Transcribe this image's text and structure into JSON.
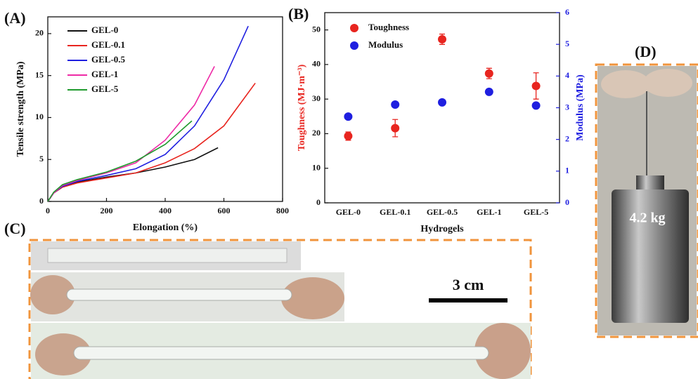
{
  "panel_labels": [
    "(A)",
    "(B)",
    "(C)",
    "(D)"
  ],
  "photo_c": {
    "scale_label": "3 cm"
  },
  "photo_d": {
    "weight_label": "4.2 kg"
  },
  "chart_data": [
    {
      "type": "line",
      "xlabel": "Elongation (%)",
      "ylabel": "Tensile strength (MPa)",
      "xlim": [
        0,
        800
      ],
      "xticks": [
        0,
        200,
        400,
        600,
        800
      ],
      "ylim": [
        0,
        22
      ],
      "yticks": [
        0,
        5,
        10,
        15,
        20
      ],
      "legend": "upper left",
      "series": [
        {
          "name": "GEL-0",
          "color": "#111111",
          "x": [
            0,
            20,
            50,
            100,
            200,
            300,
            400,
            500,
            580
          ],
          "values": [
            0,
            1.0,
            1.8,
            2.3,
            2.9,
            3.4,
            4.1,
            5.0,
            6.4
          ]
        },
        {
          "name": "GEL-0.1",
          "color": "#e8251f",
          "x": [
            0,
            20,
            50,
            100,
            200,
            300,
            400,
            500,
            600,
            707
          ],
          "values": [
            0,
            1.0,
            1.7,
            2.2,
            2.8,
            3.4,
            4.6,
            6.3,
            9.0,
            14.1
          ]
        },
        {
          "name": "GEL-0.5",
          "color": "#1f1fe0",
          "x": [
            0,
            20,
            50,
            100,
            200,
            300,
            400,
            500,
            600,
            683
          ],
          "values": [
            0,
            1.0,
            1.8,
            2.4,
            3.1,
            3.9,
            5.6,
            9.0,
            14.5,
            20.9
          ]
        },
        {
          "name": "GEL-1",
          "color": "#ee2aa6",
          "x": [
            0,
            20,
            50,
            100,
            200,
            300,
            400,
            500,
            568
          ],
          "values": [
            0,
            1.0,
            1.9,
            2.5,
            3.4,
            4.6,
            7.3,
            11.5,
            16.1
          ]
        },
        {
          "name": "GEL-5",
          "color": "#1f9a2e",
          "x": [
            0,
            20,
            50,
            100,
            200,
            300,
            400,
            491
          ],
          "values": [
            0,
            1.1,
            2.0,
            2.6,
            3.5,
            4.8,
            6.8,
            9.6
          ]
        }
      ]
    },
    {
      "type": "scatter",
      "xlabel": "Hydrogels",
      "ylabel": "Toughness (MJ·m⁻³)",
      "y2label": "Modulus (MPa)",
      "categories": [
        "GEL-0",
        "GEL-0.1",
        "GEL-0.5",
        "GEL-1",
        "GEL-5"
      ],
      "ylim": [
        0,
        55
      ],
      "yticks": [
        0,
        10,
        20,
        30,
        40,
        50
      ],
      "y2lim": [
        0,
        6
      ],
      "y2ticks": [
        0,
        1,
        2,
        3,
        4,
        5,
        6
      ],
      "legend": "upper left",
      "series": [
        {
          "name": "Toughness",
          "color": "#e8251f",
          "values": [
            19.3,
            21.6,
            47.3,
            37.4,
            33.8
          ],
          "errors": [
            1.2,
            2.5,
            1.5,
            1.5,
            3.8
          ]
        },
        {
          "name": "Modulus",
          "color": "#1f1fe0",
          "axis": "y2",
          "values": [
            2.72,
            3.1,
            3.17,
            3.5,
            3.07
          ]
        }
      ]
    }
  ]
}
